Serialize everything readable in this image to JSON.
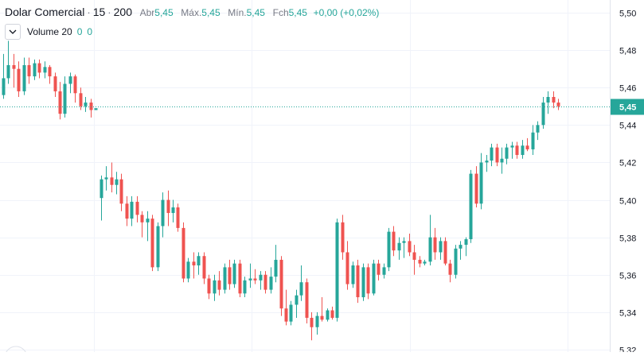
{
  "legend": {
    "symbol": "Dolar Comercial",
    "interval": "15",
    "source": "200",
    "open_label": "Abr",
    "open": "5,45",
    "high_label": "Máx.",
    "high": "5,45",
    "low_label": "Mín.",
    "low": "5,45",
    "close_label": "Fch",
    "close": "5,45",
    "change": "+0,00 (+0,02%)"
  },
  "volume": {
    "label": "Volume 20",
    "v1": "0",
    "v2": "0"
  },
  "colors": {
    "up": "#26a69a",
    "down": "#ef5350",
    "grid": "#f0f3fa",
    "price_line": "#26a69a",
    "price_tag": "#26a69a"
  },
  "chart_data": {
    "type": "candlestick",
    "ylim": [
      5.32,
      5.5
    ],
    "y_ticks": [
      "5,50",
      "5,48",
      "5,46",
      "5,44",
      "5,42",
      "5,40",
      "5,38",
      "5,36",
      "5,34",
      "5,32"
    ],
    "last_price": "5,45",
    "last_value": 5.45,
    "candles": [
      [
        5.456,
        5.478,
        5.454,
        5.465
      ],
      [
        5.465,
        5.485,
        5.462,
        5.472
      ],
      [
        5.472,
        5.478,
        5.46,
        5.47
      ],
      [
        5.47,
        5.474,
        5.455,
        5.458
      ],
      [
        5.458,
        5.476,
        5.456,
        5.472
      ],
      [
        5.472,
        5.476,
        5.462,
        5.466
      ],
      [
        5.466,
        5.475,
        5.464,
        5.473
      ],
      [
        5.473,
        5.475,
        5.465,
        5.468
      ],
      [
        5.468,
        5.474,
        5.465,
        5.471
      ],
      [
        5.471,
        5.472,
        5.462,
        5.466
      ],
      [
        5.466,
        5.468,
        5.455,
        5.458
      ],
      [
        5.458,
        5.463,
        5.443,
        5.446
      ],
      [
        5.446,
        5.466,
        5.444,
        5.462
      ],
      [
        5.462,
        5.468,
        5.457,
        5.466
      ],
      [
        5.466,
        5.467,
        5.452,
        5.457
      ],
      [
        5.457,
        5.46,
        5.448,
        5.45
      ],
      [
        5.45,
        5.455,
        5.447,
        5.452
      ],
      [
        5.452,
        5.454,
        5.444,
        5.448
      ],
      [
        5.448,
        5.449,
        5.449,
        5.449
      ],
      [
        5.401,
        5.413,
        5.389,
        5.411
      ],
      [
        5.411,
        5.418,
        5.405,
        5.412
      ],
      [
        5.412,
        5.42,
        5.404,
        5.408
      ],
      [
        5.408,
        5.415,
        5.403,
        5.411
      ],
      [
        5.411,
        5.414,
        5.394,
        5.398
      ],
      [
        5.398,
        5.402,
        5.386,
        5.39
      ],
      [
        5.39,
        5.402,
        5.386,
        5.399
      ],
      [
        5.399,
        5.402,
        5.388,
        5.392
      ],
      [
        5.392,
        5.394,
        5.38,
        5.388
      ],
      [
        5.388,
        5.394,
        5.378,
        5.39
      ],
      [
        5.39,
        5.392,
        5.362,
        5.364
      ],
      [
        5.364,
        5.388,
        5.362,
        5.386
      ],
      [
        5.386,
        5.404,
        5.38,
        5.4
      ],
      [
        5.4,
        5.405,
        5.386,
        5.393
      ],
      [
        5.393,
        5.4,
        5.388,
        5.396
      ],
      [
        5.396,
        5.398,
        5.383,
        5.385
      ],
      [
        5.385,
        5.388,
        5.356,
        5.358
      ],
      [
        5.358,
        5.369,
        5.356,
        5.367
      ],
      [
        5.367,
        5.372,
        5.358,
        5.365
      ],
      [
        5.365,
        5.372,
        5.36,
        5.37
      ],
      [
        5.37,
        5.372,
        5.355,
        5.358
      ],
      [
        5.358,
        5.36,
        5.347,
        5.35
      ],
      [
        5.35,
        5.36,
        5.346,
        5.357
      ],
      [
        5.357,
        5.362,
        5.349,
        5.352
      ],
      [
        5.352,
        5.366,
        5.35,
        5.364
      ],
      [
        5.364,
        5.368,
        5.352,
        5.355
      ],
      [
        5.355,
        5.368,
        5.353,
        5.366
      ],
      [
        5.366,
        5.368,
        5.348,
        5.35
      ],
      [
        5.35,
        5.359,
        5.348,
        5.357
      ],
      [
        5.357,
        5.366,
        5.353,
        5.358
      ],
      [
        5.358,
        5.363,
        5.355,
        5.357
      ],
      [
        5.357,
        5.362,
        5.352,
        5.36
      ],
      [
        5.36,
        5.362,
        5.35,
        5.352
      ],
      [
        5.352,
        5.364,
        5.35,
        5.359
      ],
      [
        5.359,
        5.376,
        5.356,
        5.368
      ],
      [
        5.368,
        5.37,
        5.338,
        5.342
      ],
      [
        5.342,
        5.352,
        5.333,
        5.335
      ],
      [
        5.335,
        5.346,
        5.333,
        5.344
      ],
      [
        5.344,
        5.352,
        5.337,
        5.349
      ],
      [
        5.349,
        5.365,
        5.346,
        5.356
      ],
      [
        5.356,
        5.358,
        5.334,
        5.337
      ],
      [
        5.337,
        5.34,
        5.325,
        5.332
      ],
      [
        5.332,
        5.34,
        5.328,
        5.338
      ],
      [
        5.338,
        5.348,
        5.335,
        5.336
      ],
      [
        5.336,
        5.342,
        5.335,
        5.341
      ],
      [
        5.341,
        5.343,
        5.336,
        5.337
      ],
      [
        5.337,
        5.39,
        5.335,
        5.388
      ],
      [
        5.388,
        5.392,
        5.368,
        5.372
      ],
      [
        5.372,
        5.378,
        5.352,
        5.355
      ],
      [
        5.355,
        5.367,
        5.353,
        5.365
      ],
      [
        5.365,
        5.368,
        5.345,
        5.348
      ],
      [
        5.348,
        5.366,
        5.346,
        5.364
      ],
      [
        5.364,
        5.366,
        5.347,
        5.35
      ],
      [
        5.35,
        5.368,
        5.349,
        5.366
      ],
      [
        5.366,
        5.368,
        5.357,
        5.36
      ],
      [
        5.36,
        5.366,
        5.358,
        5.364
      ],
      [
        5.364,
        5.385,
        5.362,
        5.383
      ],
      [
        5.383,
        5.386,
        5.37,
        5.373
      ],
      [
        5.373,
        5.38,
        5.368,
        5.377
      ],
      [
        5.377,
        5.38,
        5.369,
        5.378
      ],
      [
        5.378,
        5.382,
        5.37,
        5.372
      ],
      [
        5.372,
        5.376,
        5.36,
        5.368
      ],
      [
        5.368,
        5.37,
        5.364,
        5.366
      ],
      [
        5.366,
        5.368,
        5.365,
        5.367
      ],
      [
        5.367,
        5.392,
        5.365,
        5.38
      ],
      [
        5.38,
        5.385,
        5.368,
        5.372
      ],
      [
        5.372,
        5.38,
        5.368,
        5.378
      ],
      [
        5.378,
        5.38,
        5.365,
        5.366
      ],
      [
        5.366,
        5.368,
        5.356,
        5.36
      ],
      [
        5.36,
        5.376,
        5.358,
        5.374
      ],
      [
        5.374,
        5.378,
        5.368,
        5.376
      ],
      [
        5.376,
        5.38,
        5.37,
        5.379
      ],
      [
        5.379,
        5.416,
        5.377,
        5.414
      ],
      [
        5.414,
        5.418,
        5.396,
        5.398
      ],
      [
        5.398,
        5.425,
        5.395,
        5.42
      ],
      [
        5.42,
        5.424,
        5.415,
        5.421
      ],
      [
        5.421,
        5.43,
        5.418,
        5.428
      ],
      [
        5.428,
        5.43,
        5.418,
        5.42
      ],
      [
        5.42,
        5.428,
        5.414,
        5.422
      ],
      [
        5.422,
        5.43,
        5.419,
        5.428
      ],
      [
        5.428,
        5.431,
        5.422,
        5.429
      ],
      [
        5.429,
        5.431,
        5.422,
        5.424
      ],
      [
        5.424,
        5.432,
        5.422,
        5.429
      ],
      [
        5.429,
        5.433,
        5.426,
        5.427
      ],
      [
        5.427,
        5.44,
        5.424,
        5.436
      ],
      [
        5.436,
        5.442,
        5.432,
        5.44
      ],
      [
        5.44,
        5.455,
        5.438,
        5.452
      ],
      [
        5.452,
        5.458,
        5.446,
        5.455
      ],
      [
        5.455,
        5.458,
        5.449,
        5.452
      ],
      [
        5.452,
        5.454,
        5.448,
        5.45
      ]
    ]
  }
}
